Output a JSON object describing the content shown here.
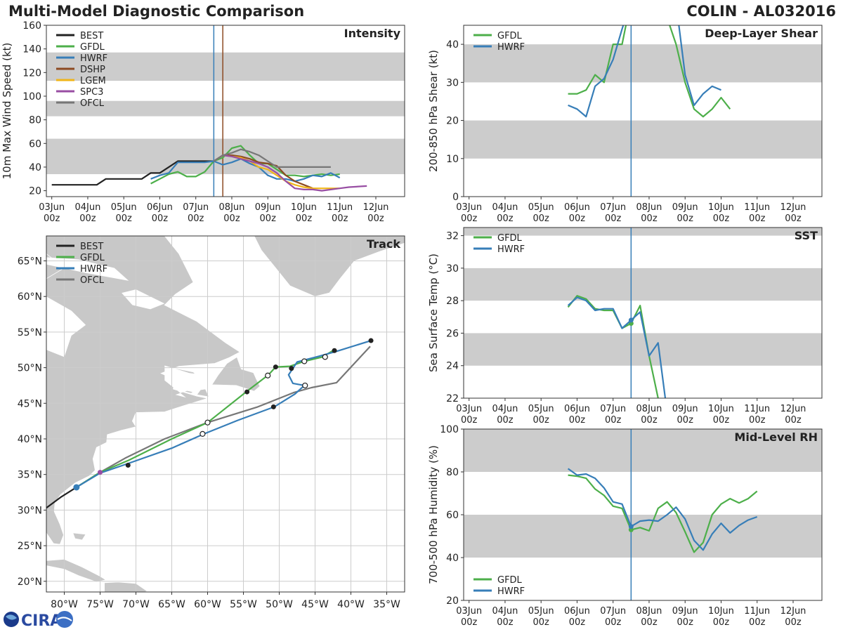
{
  "header": {
    "title_left": "Multi-Model Diagnostic Comparison",
    "title_right": "COLIN - AL032016"
  },
  "logo": {
    "text": "CIRA"
  },
  "colors": {
    "BEST": "#222222",
    "GFDL": "#4daf4a",
    "HWRF": "#377eb8",
    "DSHP": "#8c4a22",
    "LGEM": "#f0b51a",
    "SPC3": "#984ea3",
    "OFCL": "#777777",
    "band": "#cccccc",
    "grid": "#cccccc"
  },
  "time_axis": {
    "tick_days": [
      0,
      1,
      2,
      3,
      4,
      5,
      6,
      7,
      8,
      9
    ],
    "tick_labels_top": [
      "03Jun",
      "04Jun",
      "05Jun",
      "06Jun",
      "07Jun",
      "08Jun",
      "09Jun",
      "10Jun",
      "11Jun",
      "12Jun"
    ],
    "tick_labels_bottom": [
      "00z",
      "00z",
      "00z",
      "00z",
      "00z",
      "00z",
      "00z",
      "00z",
      "00z",
      "00z"
    ]
  },
  "chart_data": [
    {
      "id": "intensity",
      "type": "line",
      "title": "Intensity",
      "ylabel": "10m Max Wind Speed (kt)",
      "xlim": [
        -0.15,
        9.8
      ],
      "ylim": [
        15,
        160
      ],
      "yticks": [
        20,
        40,
        60,
        80,
        100,
        120,
        140,
        160
      ],
      "bands": [
        [
          34,
          64
        ],
        [
          83,
          96
        ],
        [
          113,
          137
        ]
      ],
      "vlines": [
        {
          "x": 4.5,
          "color": "#377eb8"
        },
        {
          "x": 4.75,
          "color": "#8c4a22"
        }
      ],
      "legend": [
        "BEST",
        "GFDL",
        "HWRF",
        "DSHP",
        "LGEM",
        "SPC3",
        "OFCL"
      ],
      "series": [
        {
          "name": "BEST",
          "x": [
            0,
            0.25,
            0.5,
            0.75,
            1,
            1.25,
            1.5,
            1.75,
            2,
            2.25,
            2.5,
            2.75,
            3,
            3.25,
            3.5,
            3.75,
            4,
            4.25,
            4.5
          ],
          "y": [
            25,
            25,
            25,
            25,
            25,
            25,
            30,
            30,
            30,
            30,
            30,
            35,
            35,
            40,
            45,
            45,
            45,
            45,
            45
          ]
        },
        {
          "name": "GFDL",
          "x": [
            2.75,
            3,
            3.25,
            3.5,
            3.75,
            4,
            4.25,
            4.5,
            4.75,
            5,
            5.25,
            5.5,
            5.75,
            6,
            6.25,
            6.5,
            6.75,
            7,
            7.25,
            7.5,
            7.75,
            8
          ],
          "y": [
            26,
            30,
            34,
            36,
            32,
            32,
            36,
            45,
            48,
            56,
            58,
            50,
            43,
            43,
            38,
            33,
            33,
            32,
            33,
            34,
            33,
            34
          ]
        },
        {
          "name": "HWRF",
          "x": [
            2.75,
            3,
            3.25,
            3.5,
            3.75,
            4,
            4.25,
            4.5,
            4.75,
            5,
            5.25,
            5.5,
            5.75,
            6,
            6.25,
            6.5,
            6.75,
            7,
            7.25,
            7.5,
            7.75,
            8
          ],
          "y": [
            30,
            33,
            35,
            44,
            44,
            44,
            44,
            45,
            42,
            44,
            47,
            43,
            40,
            33,
            30,
            30,
            28,
            30,
            33,
            32,
            35,
            31
          ]
        },
        {
          "name": "DSHP",
          "x": [
            4.5,
            4.75,
            5,
            5.25,
            5.5,
            5.75,
            6,
            6.25,
            6.5,
            6.75,
            7,
            7.25
          ],
          "y": [
            45,
            50,
            50,
            49,
            47,
            44,
            43,
            41,
            33,
            28,
            25,
            22
          ]
        },
        {
          "name": "LGEM",
          "x": [
            4.5,
            4.75,
            5,
            5.25,
            5.5,
            5.75,
            6,
            6.25,
            6.5,
            6.75,
            7,
            7.25,
            7.5,
            7.75,
            8
          ],
          "y": [
            45,
            50,
            49,
            48,
            45,
            40,
            38,
            33,
            28,
            25,
            23,
            22,
            22,
            22,
            22
          ]
        },
        {
          "name": "SPC3",
          "x": [
            4.5,
            4.75,
            5,
            5.25,
            5.5,
            5.75,
            6,
            6.25,
            6.5,
            6.75,
            7,
            7.25,
            7.5,
            7.75,
            8,
            8.25,
            8.75
          ],
          "y": [
            45,
            50,
            49,
            47,
            45,
            43,
            40,
            35,
            28,
            22,
            21,
            21,
            20,
            21,
            22,
            23,
            24
          ]
        },
        {
          "name": "OFCL",
          "x": [
            4.5,
            4.75,
            5,
            5.25,
            5.5,
            5.75,
            6,
            6.25,
            6.5,
            6.75,
            7,
            7.25,
            7.5,
            7.75
          ],
          "y": [
            45,
            50,
            52,
            55,
            53,
            50,
            45,
            40,
            40,
            40,
            40,
            40,
            40,
            40
          ]
        }
      ]
    },
    {
      "id": "shear",
      "type": "line",
      "title": "Deep-Layer Shear",
      "ylabel": "200-850 hPa Shear (kt)",
      "xlim": [
        -0.15,
        9.8
      ],
      "ylim": [
        0,
        45
      ],
      "yticks": [
        0,
        10,
        20,
        30,
        40
      ],
      "bands": [
        [
          10,
          20
        ],
        [
          30,
          40
        ]
      ],
      "vlines": [
        {
          "x": 4.5,
          "color": "#377eb8"
        }
      ],
      "legend": [
        "GFDL",
        "HWRF"
      ],
      "series": [
        {
          "name": "GFDL",
          "x": [
            2.75,
            3,
            3.25,
            3.5,
            3.75,
            4,
            4.25,
            4.4,
            5.25,
            5.5,
            5.75,
            6,
            6.25,
            6.5,
            6.75,
            7,
            7.25,
            7.5,
            7.75,
            8
          ],
          "y": [
            27,
            27,
            28,
            32,
            30,
            40,
            40,
            47,
            47,
            47,
            40,
            30,
            23,
            21,
            23,
            26,
            23,
            null,
            null,
            null
          ]
        },
        {
          "name": "HWRF",
          "x": [
            2.75,
            3,
            3.25,
            3.5,
            3.75,
            4,
            4.25,
            4.35,
            5.8,
            6,
            6.25,
            6.5,
            6.75,
            7,
            7.25,
            7.5,
            7.75,
            8
          ],
          "y": [
            24,
            23,
            21,
            29,
            31,
            36,
            44,
            47,
            47,
            32,
            24,
            27,
            29,
            28,
            null,
            null,
            null,
            null
          ]
        }
      ]
    },
    {
      "id": "sst",
      "type": "line",
      "title": "SST",
      "ylabel": "Sea Surface Temp (°C)",
      "xlim": [
        -0.15,
        9.8
      ],
      "ylim": [
        22,
        32.5
      ],
      "yticks": [
        22,
        24,
        26,
        28,
        30,
        32
      ],
      "bands": [
        [
          24,
          26
        ],
        [
          28,
          30
        ],
        [
          32,
          33
        ]
      ],
      "vlines": [
        {
          "x": 4.5,
          "color": "#377eb8"
        }
      ],
      "legend": [
        "GFDL",
        "HWRF"
      ],
      "series": [
        {
          "name": "GFDL",
          "x": [
            2.75,
            3,
            3.25,
            3.5,
            3.75,
            4,
            4.25,
            4.5,
            4.75,
            5,
            5.25
          ],
          "y": [
            27.6,
            28.3,
            28.1,
            27.5,
            27.4,
            27.4,
            26.3,
            26.6,
            27.7,
            24.6,
            22
          ],
          "marker_x": 4.5,
          "marker_y": 26.6
        },
        {
          "name": "HWRF",
          "x": [
            2.75,
            3,
            3.25,
            3.5,
            3.75,
            4,
            4.25,
            4.5,
            4.75,
            5,
            5.25,
            5.45
          ],
          "y": [
            27.7,
            28.2,
            28.0,
            27.4,
            27.5,
            27.5,
            26.3,
            26.8,
            27.3,
            24.6,
            25.4,
            22
          ],
          "marker_x": 4.5,
          "marker_y": 26.8
        }
      ]
    },
    {
      "id": "rh",
      "type": "line",
      "title": "Mid-Level RH",
      "ylabel": "700-500 hPa Humidity (%)",
      "xlim": [
        -0.15,
        9.8
      ],
      "ylim": [
        20,
        100
      ],
      "yticks": [
        20,
        40,
        60,
        80,
        100
      ],
      "bands": [
        [
          40,
          60
        ],
        [
          80,
          100
        ]
      ],
      "vlines": [
        {
          "x": 4.5,
          "color": "#377eb8"
        }
      ],
      "legend": [
        "GFDL",
        "HWRF"
      ],
      "series": [
        {
          "name": "GFDL",
          "x": [
            2.75,
            3,
            3.25,
            3.5,
            3.75,
            4,
            4.25,
            4.5,
            4.75,
            5,
            5.25,
            5.5,
            5.75,
            6,
            6.25,
            6.5,
            6.75,
            7,
            7.25,
            7.5,
            7.75,
            8
          ],
          "y": [
            78.5,
            78,
            77,
            72,
            69,
            64,
            63,
            53,
            54,
            52.5,
            63,
            66,
            61,
            52,
            42.5,
            47,
            60,
            65,
            67.5,
            65.5,
            67.5,
            71
          ],
          "marker_x": 4.5,
          "marker_y": 53
        },
        {
          "name": "HWRF",
          "x": [
            2.75,
            3,
            3.25,
            3.5,
            3.75,
            4,
            4.25,
            4.5,
            4.75,
            5,
            5.25,
            5.5,
            5.75,
            6,
            6.25,
            6.5,
            6.75,
            7,
            7.25,
            7.5,
            7.75,
            8
          ],
          "y": [
            81.5,
            78.5,
            79,
            77,
            72.5,
            66,
            65,
            54.5,
            57,
            57.5,
            57,
            60,
            63.5,
            58,
            48,
            43.5,
            51,
            56,
            51.5,
            55,
            57.5,
            59
          ],
          "marker_x": 4.5,
          "marker_y": 54.5
        }
      ]
    },
    {
      "id": "track",
      "type": "line",
      "title": "Track",
      "xlabel": "",
      "ylabel": "",
      "xlim": [
        -82.5,
        -32.5
      ],
      "ylim": [
        18.5,
        68.5
      ],
      "xticks": [
        -80,
        -75,
        -70,
        -65,
        -60,
        -55,
        -50,
        -45,
        -40,
        -35
      ],
      "xtick_labels": [
        "80°W",
        "75°W",
        "70°W",
        "65°W",
        "60°W",
        "55°W",
        "50°W",
        "45°W",
        "40°W",
        "35°W"
      ],
      "yticks": [
        20,
        25,
        30,
        35,
        40,
        45,
        50,
        55,
        60,
        65
      ],
      "ytick_labels": [
        "20°N",
        "25°N",
        "30°N",
        "35°N",
        "40°N",
        "45°N",
        "50°N",
        "55°N",
        "60°N",
        "65°N"
      ],
      "legend": [
        "BEST",
        "GFDL",
        "HWRF",
        "OFCL"
      ],
      "series": [
        {
          "name": "BEST",
          "lon": [
            -82.5,
            -80.5,
            -78.3
          ],
          "lat": [
            30.3,
            31.8,
            33.2
          ]
        },
        {
          "name": "OFCL",
          "lon": [
            -78.3,
            -75,
            -71.5,
            -66,
            -60,
            -53,
            -48,
            -45.5,
            -42,
            -37.3
          ],
          "lat": [
            33.2,
            35.3,
            37.3,
            40,
            42.3,
            44.5,
            46.5,
            47.2,
            47.9,
            53
          ]
        },
        {
          "name": "GFDL",
          "lon": [
            -78.3,
            -75,
            -71,
            -65,
            -60,
            -54.5,
            -51.5,
            -50.5,
            -48.5,
            -46.5,
            -44,
            -42.5
          ],
          "lat": [
            33.2,
            35.3,
            37,
            40,
            42.3,
            46.7,
            49,
            50.1,
            50.2,
            50.9,
            51.5,
            52.4
          ]
        },
        {
          "name": "HWRF",
          "lon": [
            -78.3,
            -75,
            -71.5,
            -65,
            -60.5,
            -55.8,
            -50.7,
            -47.8,
            -46.5,
            -48.1,
            -48.7,
            -47.5,
            -44.5,
            -42,
            -37.2
          ],
          "lat": [
            33.2,
            35.2,
            36.4,
            38.7,
            40.7,
            42.6,
            44.5,
            46.3,
            47.5,
            47.8,
            49,
            50.8,
            51.6,
            52.3,
            53.8
          ]
        }
      ],
      "markers_filled": [
        [
          -71.1,
          36.3
        ],
        [
          -54.5,
          46.6
        ],
        [
          -50.8,
          44.5
        ],
        [
          -50.5,
          50.1
        ],
        [
          -48.3,
          49.9
        ],
        [
          -42.3,
          52.4
        ],
        [
          -37.2,
          53.8
        ]
      ],
      "markers_open": [
        [
          -60,
          42.3
        ],
        [
          -60.7,
          40.7
        ],
        [
          -51.6,
          48.9
        ],
        [
          -46.5,
          50.9
        ],
        [
          -46.4,
          47.5
        ],
        [
          -43.6,
          51.5
        ]
      ]
    }
  ]
}
